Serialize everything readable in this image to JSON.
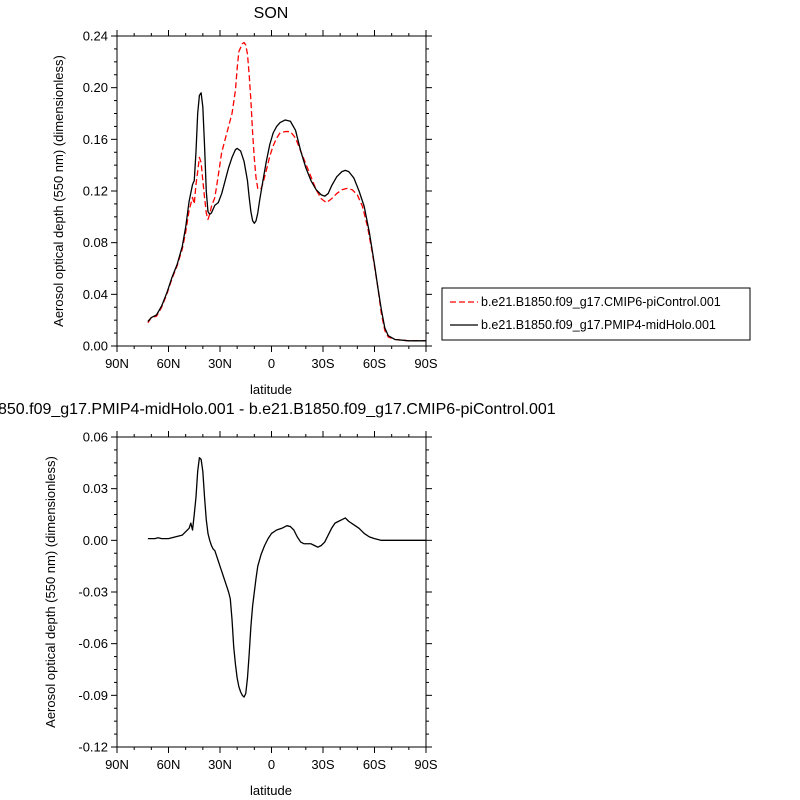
{
  "chart_data": [
    {
      "type": "line",
      "title": "SON",
      "xlabel": "latitude",
      "ylabel": "Aerosol optical depth (550 nm) (dimensionless)",
      "xlim": [
        90,
        -90
      ],
      "ylim": [
        0,
        0.24
      ],
      "xticks": [
        {
          "v": 90,
          "label": "90N"
        },
        {
          "v": 60,
          "label": "60N"
        },
        {
          "v": 30,
          "label": "30N"
        },
        {
          "v": 0,
          "label": "0"
        },
        {
          "v": -30,
          "label": "30S"
        },
        {
          "v": -60,
          "label": "60S"
        },
        {
          "v": -90,
          "label": "90S"
        }
      ],
      "yticks": [
        {
          "v": 0,
          "label": "0.00"
        },
        {
          "v": 0.04,
          "label": "0.04"
        },
        {
          "v": 0.08,
          "label": "0.08"
        },
        {
          "v": 0.12,
          "label": "0.12"
        },
        {
          "v": 0.16,
          "label": "0.16"
        },
        {
          "v": 0.2,
          "label": "0.20"
        },
        {
          "v": 0.24,
          "label": "0.24"
        }
      ],
      "legend_position": "right",
      "series": [
        {
          "name": "b.e21.B1850.f09_g17.CMIP6-piControl.001",
          "color": "#ff0000",
          "dash": "dashed",
          "points": [
            [
              72,
              0.018
            ],
            [
              70,
              0.022
            ],
            [
              67,
              0.023
            ],
            [
              64,
              0.03
            ],
            [
              61,
              0.04
            ],
            [
              58,
              0.052
            ],
            [
              55,
              0.062
            ],
            [
              52,
              0.075
            ],
            [
              50,
              0.088
            ],
            [
              48,
              0.105
            ],
            [
              46,
              0.115
            ],
            [
              45,
              0.11
            ],
            [
              44,
              0.125
            ],
            [
              43,
              0.135
            ],
            [
              42,
              0.146
            ],
            [
              41,
              0.142
            ],
            [
              40,
              0.128
            ],
            [
              39,
              0.115
            ],
            [
              38,
              0.103
            ],
            [
              37,
              0.098
            ],
            [
              36,
              0.102
            ],
            [
              35,
              0.108
            ],
            [
              33,
              0.115
            ],
            [
              31,
              0.132
            ],
            [
              29,
              0.15
            ],
            [
              27,
              0.16
            ],
            [
              25,
              0.17
            ],
            [
              23,
              0.18
            ],
            [
              21,
              0.198
            ],
            [
              20,
              0.215
            ],
            [
              19,
              0.228
            ],
            [
              17,
              0.234
            ],
            [
              16,
              0.235
            ],
            [
              15,
              0.233
            ],
            [
              14,
              0.226
            ],
            [
              13,
              0.21
            ],
            [
              12,
              0.19
            ],
            [
              11,
              0.165
            ],
            [
              10,
              0.145
            ],
            [
              9,
              0.13
            ],
            [
              8,
              0.122
            ],
            [
              7,
              0.121
            ],
            [
              6,
              0.122
            ],
            [
              5,
              0.126
            ],
            [
              3,
              0.136
            ],
            [
              1,
              0.147
            ],
            [
              -1,
              0.155
            ],
            [
              -3,
              0.161
            ],
            [
              -5,
              0.165
            ],
            [
              -8,
              0.166
            ],
            [
              -11,
              0.166
            ],
            [
              -14,
              0.161
            ],
            [
              -17,
              0.151
            ],
            [
              -20,
              0.141
            ],
            [
              -23,
              0.131
            ],
            [
              -26,
              0.121
            ],
            [
              -29,
              0.114
            ],
            [
              -32,
              0.111
            ],
            [
              -35,
              0.114
            ],
            [
              -38,
              0.118
            ],
            [
              -41,
              0.121
            ],
            [
              -44,
              0.122
            ],
            [
              -47,
              0.121
            ],
            [
              -50,
              0.117
            ],
            [
              -53,
              0.108
            ],
            [
              -56,
              0.092
            ],
            [
              -59,
              0.07
            ],
            [
              -62,
              0.045
            ],
            [
              -64,
              0.025
            ],
            [
              -66,
              0.012
            ],
            [
              -68,
              0.007
            ],
            [
              -72,
              0.005
            ],
            [
              -80,
              0.004
            ],
            [
              -90,
              0.004
            ]
          ]
        },
        {
          "name": "b.e21.B1850.f09_g17.PMIP4-midHolo.001",
          "color": "#000000",
          "dash": "solid",
          "points": [
            [
              72,
              0.019
            ],
            [
              70,
              0.022
            ],
            [
              67,
              0.024
            ],
            [
              64,
              0.031
            ],
            [
              61,
              0.041
            ],
            [
              58,
              0.053
            ],
            [
              55,
              0.063
            ],
            [
              52,
              0.077
            ],
            [
              50,
              0.092
            ],
            [
              48,
              0.112
            ],
            [
              46,
              0.125
            ],
            [
              45,
              0.128
            ],
            [
              44,
              0.15
            ],
            [
              43,
              0.18
            ],
            [
              42,
              0.194
            ],
            [
              41,
              0.196
            ],
            [
              40,
              0.185
            ],
            [
              39,
              0.155
            ],
            [
              38,
              0.12
            ],
            [
              37,
              0.104
            ],
            [
              36,
              0.102
            ],
            [
              35,
              0.103
            ],
            [
              33,
              0.109
            ],
            [
              31,
              0.111
            ],
            [
              29,
              0.118
            ],
            [
              27,
              0.128
            ],
            [
              25,
              0.138
            ],
            [
              23,
              0.146
            ],
            [
              21,
              0.152
            ],
            [
              20,
              0.153
            ],
            [
              18,
              0.151
            ],
            [
              16,
              0.143
            ],
            [
              14,
              0.128
            ],
            [
              13,
              0.115
            ],
            [
              12,
              0.104
            ],
            [
              11,
              0.097
            ],
            [
              10,
              0.095
            ],
            [
              9,
              0.097
            ],
            [
              8,
              0.103
            ],
            [
              7,
              0.112
            ],
            [
              5,
              0.128
            ],
            [
              3,
              0.143
            ],
            [
              1,
              0.156
            ],
            [
              -1,
              0.165
            ],
            [
              -3,
              0.17
            ],
            [
              -5,
              0.173
            ],
            [
              -8,
              0.175
            ],
            [
              -11,
              0.174
            ],
            [
              -14,
              0.167
            ],
            [
              -17,
              0.151
            ],
            [
              -20,
              0.138
            ],
            [
              -23,
              0.128
            ],
            [
              -26,
              0.121
            ],
            [
              -29,
              0.117
            ],
            [
              -31,
              0.116
            ],
            [
              -33,
              0.118
            ],
            [
              -35,
              0.124
            ],
            [
              -38,
              0.131
            ],
            [
              -41,
              0.135
            ],
            [
              -43,
              0.136
            ],
            [
              -45,
              0.135
            ],
            [
              -48,
              0.13
            ],
            [
              -51,
              0.12
            ],
            [
              -54,
              0.108
            ],
            [
              -57,
              0.088
            ],
            [
              -60,
              0.063
            ],
            [
              -62,
              0.045
            ],
            [
              -64,
              0.028
            ],
            [
              -66,
              0.014
            ],
            [
              -68,
              0.008
            ],
            [
              -72,
              0.005
            ],
            [
              -80,
              0.004
            ],
            [
              -90,
              0.004
            ]
          ]
        }
      ]
    },
    {
      "type": "line",
      "title": "850.f09_g17.PMIP4-midHolo.001 - b.e21.B1850.f09_g17.CMIP6-piControl.001",
      "xlabel": "latitude",
      "ylabel": "Aerosol optical depth (550 nm) (dimensionless)",
      "xlim": [
        90,
        -90
      ],
      "ylim": [
        -0.12,
        0.06
      ],
      "xticks": [
        {
          "v": 90,
          "label": "90N"
        },
        {
          "v": 60,
          "label": "60N"
        },
        {
          "v": 30,
          "label": "30N"
        },
        {
          "v": 0,
          "label": "0"
        },
        {
          "v": -30,
          "label": "30S"
        },
        {
          "v": -60,
          "label": "60S"
        },
        {
          "v": -90,
          "label": "90S"
        }
      ],
      "yticks": [
        {
          "v": 0.06,
          "label": "0.06"
        },
        {
          "v": 0.03,
          "label": "0.03"
        },
        {
          "v": 0,
          "label": "0.00"
        },
        {
          "v": -0.03,
          "label": "-0.03"
        },
        {
          "v": -0.06,
          "label": "-0.06"
        },
        {
          "v": -0.09,
          "label": "-0.09"
        },
        {
          "v": -0.12,
          "label": "-0.12"
        }
      ],
      "series": [
        {
          "color": "#000000",
          "dash": "solid",
          "points": [
            [
              72,
              0.001
            ],
            [
              68,
              0.001
            ],
            [
              66,
              0.0015
            ],
            [
              64,
              0.001
            ],
            [
              60,
              0.001
            ],
            [
              56,
              0.002
            ],
            [
              52,
              0.003
            ],
            [
              50,
              0.005
            ],
            [
              48,
              0.007
            ],
            [
              47,
              0.01
            ],
            [
              46,
              0.006
            ],
            [
              45,
              0.015
            ],
            [
              44,
              0.025
            ],
            [
              43,
              0.04
            ],
            [
              42,
              0.048
            ],
            [
              41,
              0.047
            ],
            [
              40,
              0.04
            ],
            [
              39,
              0.025
            ],
            [
              38,
              0.012
            ],
            [
              37,
              0.004
            ],
            [
              36,
              0.0
            ],
            [
              35,
              -0.003
            ],
            [
              34,
              -0.005
            ],
            [
              33,
              -0.006
            ],
            [
              32,
              -0.009
            ],
            [
              31,
              -0.012
            ],
            [
              30,
              -0.015
            ],
            [
              29,
              -0.018
            ],
            [
              28,
              -0.021
            ],
            [
              27,
              -0.024
            ],
            [
              26,
              -0.027
            ],
            [
              25,
              -0.03
            ],
            [
              24,
              -0.034
            ],
            [
              23,
              -0.046
            ],
            [
              22,
              -0.062
            ],
            [
              21,
              -0.072
            ],
            [
              20,
              -0.08
            ],
            [
              19,
              -0.085
            ],
            [
              18,
              -0.088
            ],
            [
              17,
              -0.09
            ],
            [
              16,
              -0.091
            ],
            [
              15,
              -0.089
            ],
            [
              14,
              -0.08
            ],
            [
              13,
              -0.066
            ],
            [
              12,
              -0.05
            ],
            [
              11,
              -0.038
            ],
            [
              10,
              -0.03
            ],
            [
              9,
              -0.022
            ],
            [
              8,
              -0.015
            ],
            [
              6,
              -0.008
            ],
            [
              4,
              -0.003
            ],
            [
              2,
              0.001
            ],
            [
              0,
              0.004
            ],
            [
              -3,
              0.006
            ],
            [
              -6,
              0.007
            ],
            [
              -9,
              0.0085
            ],
            [
              -11,
              0.008
            ],
            [
              -13,
              0.006
            ],
            [
              -15,
              0.002
            ],
            [
              -17,
              -0.001
            ],
            [
              -19,
              -0.002
            ],
            [
              -21,
              -0.002
            ],
            [
              -23,
              -0.002
            ],
            [
              -25,
              -0.003
            ],
            [
              -27,
              -0.004
            ],
            [
              -29,
              -0.003
            ],
            [
              -31,
              -0.001
            ],
            [
              -33,
              0.003
            ],
            [
              -35,
              0.007
            ],
            [
              -37,
              0.01
            ],
            [
              -39,
              0.011
            ],
            [
              -41,
              0.012
            ],
            [
              -43,
              0.013
            ],
            [
              -45,
              0.011
            ],
            [
              -48,
              0.009
            ],
            [
              -51,
              0.007
            ],
            [
              -54,
              0.004
            ],
            [
              -57,
              0.002
            ],
            [
              -60,
              0.001
            ],
            [
              -64,
              0.0
            ],
            [
              -70,
              0.0
            ],
            [
              -80,
              0.0
            ],
            [
              -90,
              0.0
            ]
          ]
        }
      ]
    }
  ]
}
